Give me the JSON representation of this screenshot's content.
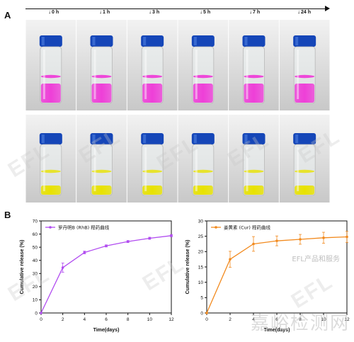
{
  "panel_a_label": "A",
  "panel_b_label": "B",
  "timeline": {
    "ticks": [
      "0 h",
      "1 h",
      "3 h",
      "5 h",
      "7 h",
      "24 h"
    ]
  },
  "photos": {
    "row1_liquid_color": "#ee3fd8",
    "row2_liquid_color": "#e8e200",
    "cap_color": "#1546b8",
    "background_color": "#d8d8d8"
  },
  "watermark_text": "EFL",
  "cn_watermark": "嘉峪检测网",
  "cn_watermark_small": "EFL产品和服务",
  "chart_data": [
    {
      "type": "line",
      "xlabel": "Time(days)",
      "ylabel": "Cumulative release (%)",
      "xlim": [
        0,
        12
      ],
      "ylim": [
        0,
        70
      ],
      "xticks": [
        0,
        2,
        4,
        6,
        8,
        10,
        12
      ],
      "yticks": [
        0,
        10,
        20,
        30,
        40,
        50,
        60,
        70
      ],
      "color": "#b14cf0",
      "legend_position": "top-left",
      "series": [
        {
          "name": "罗丹明B (RhB) 释药曲线",
          "x": [
            0,
            2,
            4,
            6,
            8,
            10,
            12
          ],
          "y": [
            0,
            34.5,
            46,
            51,
            54.3,
            56.8,
            58.8
          ],
          "err": [
            0,
            3.5,
            1,
            0.8,
            0.8,
            0.8,
            0.8
          ]
        }
      ]
    },
    {
      "type": "line",
      "xlabel": "Time(days)",
      "ylabel": "Cumulative release (%)",
      "xlim": [
        0,
        12
      ],
      "ylim": [
        0,
        30
      ],
      "xticks": [
        0,
        2,
        4,
        6,
        8,
        10,
        12
      ],
      "yticks": [
        0,
        5,
        10,
        15,
        20,
        25,
        30
      ],
      "color": "#f28a1e",
      "legend_position": "top-left",
      "series": [
        {
          "name": "姜黄素 (Cur) 释药曲线",
          "x": [
            0,
            2,
            4,
            6,
            8,
            10,
            12
          ],
          "y": [
            0,
            17.5,
            22.5,
            23.5,
            24,
            24.5,
            24.8
          ],
          "err": [
            0,
            2.6,
            2.4,
            1.6,
            1.6,
            1.8,
            1.8
          ]
        }
      ]
    }
  ]
}
